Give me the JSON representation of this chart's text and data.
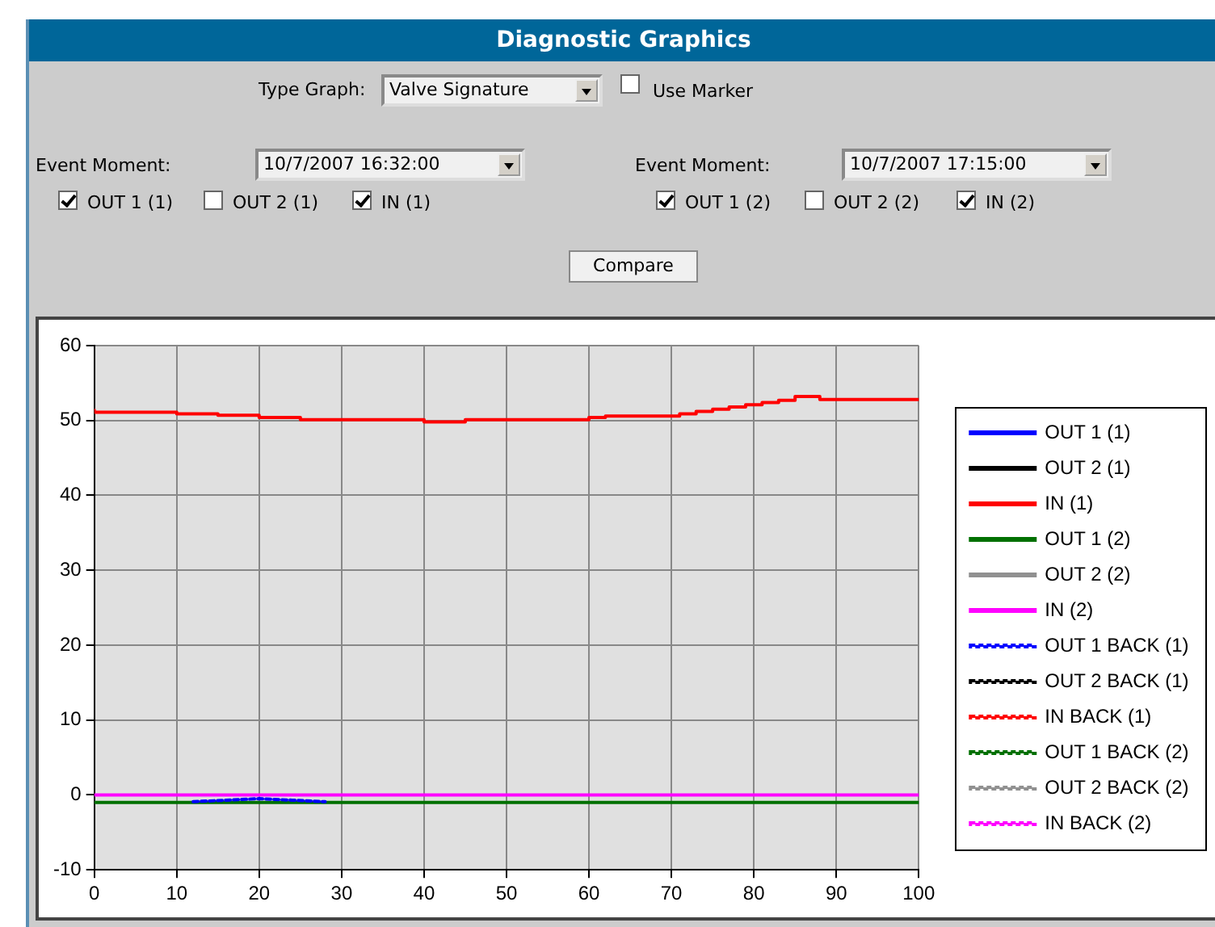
{
  "chart_data": {
    "type": "line",
    "title": "Diagnostic Graphics",
    "annotations": [
      "Type Graph:",
      "Valve Signature",
      "Use Marker",
      "Event Moment:",
      "10/7/2007 16:32:00",
      "OUT 1 (1)",
      "OUT 2 (1)",
      "IN (1)",
      "Event Moment:",
      "10/7/2007 17:15:00",
      "OUT 1 (2)",
      "OUT 2 (2)",
      "IN (2)",
      "Compare"
    ],
    "series": [
      {
        "name": "OUT 1 (1)",
        "color": "#0000ff"
      },
      {
        "name": "OUT 2 (1)",
        "color": "#000000"
      },
      {
        "name": "IN (1)",
        "color": "#ff0000",
        "type": "step",
        "x": [
          0,
          10,
          15,
          20,
          25,
          40,
          45,
          60,
          62,
          71,
          73,
          75,
          77,
          79,
          81,
          83,
          85,
          88,
          95,
          100
        ],
        "values": [
          51.4,
          51.1,
          50.9,
          50.7,
          50.4,
          50.1,
          49.8,
          50.1,
          50.4,
          50.6,
          50.9,
          51.2,
          51.5,
          51.8,
          52.1,
          52.4,
          52.7,
          53.2,
          52.8,
          52.8
        ]
      },
      {
        "name": "OUT 1 (2)",
        "color": "#007000",
        "x": [
          0,
          100
        ],
        "values": [
          -1,
          -1
        ]
      },
      {
        "name": "OUT 2 (2)",
        "color": "#909090"
      },
      {
        "name": "IN (2)",
        "color": "#ff00ff",
        "x": [
          0,
          100
        ],
        "values": [
          0,
          0
        ]
      },
      {
        "name": "OUT 1 BACK (1)",
        "color": "#0000ff",
        "line_style": "dashed",
        "x": [
          12,
          16,
          20,
          24,
          28
        ],
        "values": [
          -0.9,
          -0.7,
          -0.5,
          -0.7,
          -0.9
        ]
      },
      {
        "name": "OUT 2 BACK (1)",
        "color": "#000000",
        "line_style": "dashed"
      },
      {
        "name": "IN BACK (1)",
        "color": "#ff0000",
        "line_style": "dashed"
      },
      {
        "name": "OUT 1 BACK (2)",
        "color": "#007000",
        "line_style": "dashed"
      },
      {
        "name": "OUT 2 BACK (2)",
        "color": "#909090",
        "line_style": "dashed"
      },
      {
        "name": "IN BACK (2)",
        "color": "#ff00ff",
        "line_style": "dashed"
      }
    ],
    "xlim": [
      0,
      100
    ],
    "xticks": [
      0,
      10,
      20,
      30,
      40,
      50,
      60,
      70,
      80,
      90,
      100
    ],
    "ylim": [
      -10,
      60
    ],
    "yticks": [
      -10,
      0,
      10,
      20,
      30,
      40,
      50,
      60
    ],
    "grid": true,
    "legend": "right",
    "marker": "none",
    "line_style": "solid"
  }
}
